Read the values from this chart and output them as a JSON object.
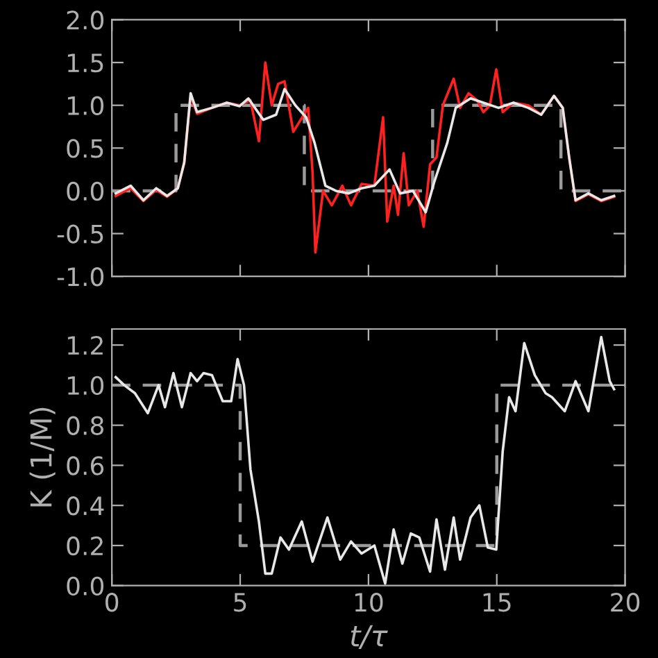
{
  "chart_data": [
    {
      "type": "line",
      "xlim": [
        0,
        20
      ],
      "ylim": [
        -1.0,
        2.0
      ],
      "xticks": [
        0,
        5,
        10,
        15,
        20
      ],
      "yticks": [
        {
          "value": -1.0,
          "label": "-1.0"
        },
        {
          "value": -0.5,
          "label": "-0.5"
        },
        {
          "value": 0.0,
          "label": "0.0"
        },
        {
          "value": 0.5,
          "label": "0.5"
        },
        {
          "value": 1.0,
          "label": "1.0"
        },
        {
          "value": 1.5,
          "label": "1.5"
        },
        {
          "value": 2.0,
          "label": "2.0"
        }
      ],
      "tick_labels": "y",
      "grid": false,
      "legend": false,
      "series": [
        {
          "type": "step",
          "color": "#9a9a9a",
          "line_style": "dashed",
          "x": [
            0,
            2.5,
            7.5,
            12.5,
            17.5,
            20
          ],
          "values": [
            0,
            1,
            0,
            1,
            0,
            0
          ]
        },
        {
          "color": "#ff2020",
          "line_style": "solid",
          "x": [
            0.15,
            0.73,
            1.23,
            1.73,
            2.15,
            2.57,
            2.82,
            3.07,
            3.32,
            3.9,
            4.48,
            4.98,
            5.4,
            5.73,
            5.98,
            6.23,
            6.48,
            6.73,
            7.07,
            7.48,
            7.65,
            7.82,
            7.93,
            8.23,
            8.57,
            8.98,
            9.32,
            9.73,
            10.23,
            10.57,
            10.73,
            10.98,
            11.15,
            11.37,
            11.57,
            11.9,
            12.15,
            12.4,
            12.65,
            12.9,
            13.32,
            13.57,
            13.9,
            14.23,
            14.48,
            14.73,
            14.98,
            15.23,
            15.65,
            16.23,
            16.73,
            17.23,
            17.57,
            17.82,
            18.07,
            18.57,
            19.07,
            19.57
          ],
          "values": [
            -0.06,
            0.03,
            -0.12,
            0.01,
            -0.07,
            0.03,
            0.33,
            1.11,
            0.9,
            0.97,
            1.03,
            1.0,
            1.06,
            0.58,
            1.5,
            1.0,
            1.25,
            1.28,
            0.69,
            0.89,
            0.97,
            0.22,
            -0.72,
            0.0,
            -0.17,
            0.06,
            -0.17,
            0.08,
            0.06,
            0.86,
            -0.36,
            0.06,
            -0.28,
            0.44,
            -0.17,
            0.0,
            -0.42,
            0.31,
            0.39,
            1.0,
            1.31,
            0.97,
            1.14,
            1.06,
            0.92,
            1.0,
            1.42,
            0.92,
            1.03,
            1.0,
            0.89,
            1.11,
            0.97,
            0.39,
            -0.12,
            -0.04,
            -0.12,
            -0.07
          ]
        },
        {
          "color": "#e8e8e8",
          "line_style": "solid",
          "x": [
            0.15,
            0.73,
            1.23,
            1.73,
            2.15,
            2.57,
            2.82,
            3.07,
            3.32,
            3.9,
            4.48,
            4.98,
            5.32,
            5.9,
            6.4,
            6.73,
            7.15,
            7.57,
            7.9,
            8.32,
            8.73,
            9.23,
            9.73,
            10.23,
            10.82,
            11.23,
            11.73,
            12.23,
            12.57,
            13.07,
            13.4,
            13.98,
            14.48,
            15.07,
            15.65,
            16.23,
            16.73,
            17.23,
            17.57,
            17.82,
            18.07,
            18.57,
            19.07,
            19.57
          ],
          "values": [
            -0.03,
            0.06,
            -0.11,
            0.03,
            -0.06,
            0.03,
            0.33,
            1.14,
            0.92,
            0.97,
            1.03,
            0.99,
            1.08,
            0.83,
            0.89,
            1.19,
            1.0,
            0.86,
            0.56,
            0.06,
            0.0,
            -0.03,
            0.03,
            0.06,
            0.25,
            -0.03,
            0.0,
            -0.25,
            0.11,
            0.56,
            0.97,
            1.08,
            1.03,
            0.97,
            1.03,
            0.97,
            0.89,
            1.11,
            0.97,
            0.39,
            -0.11,
            -0.03,
            -0.11,
            -0.06
          ]
        }
      ]
    },
    {
      "type": "line",
      "xlabel": "t/τ",
      "ylabel": "K (1/M)",
      "xlim": [
        0,
        20
      ],
      "ylim": [
        0.0,
        1.28
      ],
      "xticks": [
        0,
        5,
        10,
        15,
        20
      ],
      "yticks": [
        {
          "value": 0.0,
          "label": "0.0"
        },
        {
          "value": 0.2,
          "label": "0.2"
        },
        {
          "value": 0.4,
          "label": "0.4"
        },
        {
          "value": 0.6,
          "label": "0.6"
        },
        {
          "value": 0.8,
          "label": "0.8"
        },
        {
          "value": 1.0,
          "label": "1.0"
        },
        {
          "value": 1.2,
          "label": "1.2"
        }
      ],
      "grid": false,
      "legend": false,
      "series": [
        {
          "type": "step",
          "color": "#9a9a9a",
          "line_style": "dashed",
          "x": [
            0,
            5,
            15,
            20
          ],
          "values": [
            1.0,
            0.2,
            1.0,
            1.0
          ]
        },
        {
          "color": "#e8e8e8",
          "line_style": "solid",
          "x": [
            0.15,
            0.48,
            0.9,
            1.4,
            1.82,
            2.07,
            2.4,
            2.73,
            3.07,
            3.32,
            3.57,
            3.9,
            4.32,
            4.65,
            4.9,
            5.15,
            5.4,
            5.73,
            5.98,
            6.23,
            6.57,
            6.9,
            7.4,
            7.82,
            8.4,
            8.9,
            9.32,
            9.73,
            10.23,
            10.65,
            10.98,
            11.32,
            11.65,
            11.98,
            12.4,
            12.65,
            12.98,
            13.32,
            13.57,
            13.98,
            14.32,
            14.65,
            14.98,
            15.23,
            15.48,
            15.73,
            16.07,
            16.48,
            16.9,
            17.15,
            17.65,
            18.07,
            18.57,
            19.07,
            19.4,
            19.57
          ],
          "values": [
            1.04,
            1.0,
            0.96,
            0.86,
            1.0,
            0.89,
            1.06,
            0.89,
            1.06,
            1.02,
            1.06,
            1.05,
            0.92,
            0.92,
            1.13,
            1.0,
            0.58,
            0.32,
            0.06,
            0.06,
            0.24,
            0.18,
            0.32,
            0.12,
            0.34,
            0.13,
            0.22,
            0.16,
            0.2,
            0.01,
            0.28,
            0.11,
            0.26,
            0.24,
            0.07,
            0.33,
            0.08,
            0.34,
            0.13,
            0.34,
            0.4,
            0.19,
            0.18,
            0.67,
            0.94,
            0.87,
            1.21,
            1.05,
            0.96,
            0.94,
            0.87,
            1.02,
            0.87,
            1.24,
            1.02,
            0.98
          ]
        }
      ]
    }
  ]
}
